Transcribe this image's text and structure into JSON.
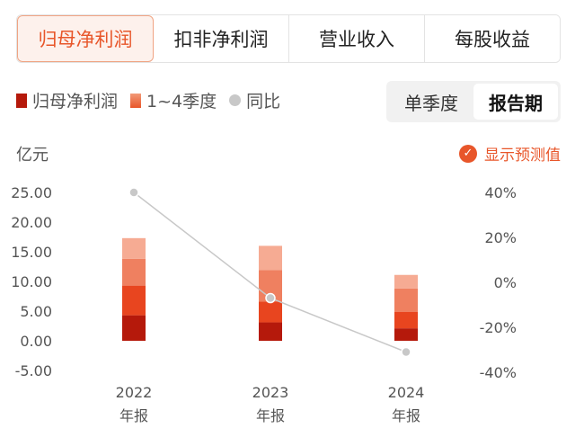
{
  "tabs": [
    {
      "label": "归母净利润",
      "active": true
    },
    {
      "label": "扣非净利润",
      "active": false
    },
    {
      "label": "营业收入",
      "active": false
    },
    {
      "label": "每股收益",
      "active": false
    }
  ],
  "legend": {
    "net_profit": "归母净利润",
    "quarters": "1~4季度",
    "yoy": "同比"
  },
  "period_toggle": {
    "single_quarter": "单季度",
    "report_period": "报告期"
  },
  "unit_label": "亿元",
  "forecast_toggle": {
    "label": "显示预测值",
    "checked": true
  },
  "colors": {
    "accent": "#e8562a",
    "q1": "#b5190b",
    "q2": "#e8451f",
    "q3": "#ef8060",
    "q4": "#f6ab93",
    "yoy_line": "#c8c8c8"
  },
  "chart_data": {
    "type": "bar",
    "categories": [
      "2022\n年报",
      "2023\n年报",
      "2024\n年报"
    ],
    "x_labels": [
      [
        "2022",
        "年报"
      ],
      [
        "2023",
        "年报"
      ],
      [
        "2024",
        "年报"
      ]
    ],
    "series": [
      {
        "name": "1季度",
        "values": [
          4.3,
          3.1,
          2.1
        ]
      },
      {
        "name": "2季度",
        "values": [
          5.0,
          3.5,
          2.8
        ]
      },
      {
        "name": "3季度",
        "values": [
          4.5,
          5.3,
          3.9
        ]
      },
      {
        "name": "4季度",
        "values": [
          3.5,
          4.1,
          2.3
        ]
      }
    ],
    "totals": [
      17.3,
      16.0,
      11.1
    ],
    "yoy": {
      "name": "同比",
      "values": [
        40,
        -7,
        -31
      ]
    },
    "ylim_left": [
      -5,
      25
    ],
    "yticks_left": [
      "25.00",
      "20.00",
      "15.00",
      "10.00",
      "5.00",
      "0.00",
      "-5.00"
    ],
    "ylim_right": [
      -40,
      40
    ],
    "yticks_right": [
      "40%",
      "20%",
      "0%",
      "-20%",
      "-40%"
    ],
    "ylabel": "亿元"
  }
}
